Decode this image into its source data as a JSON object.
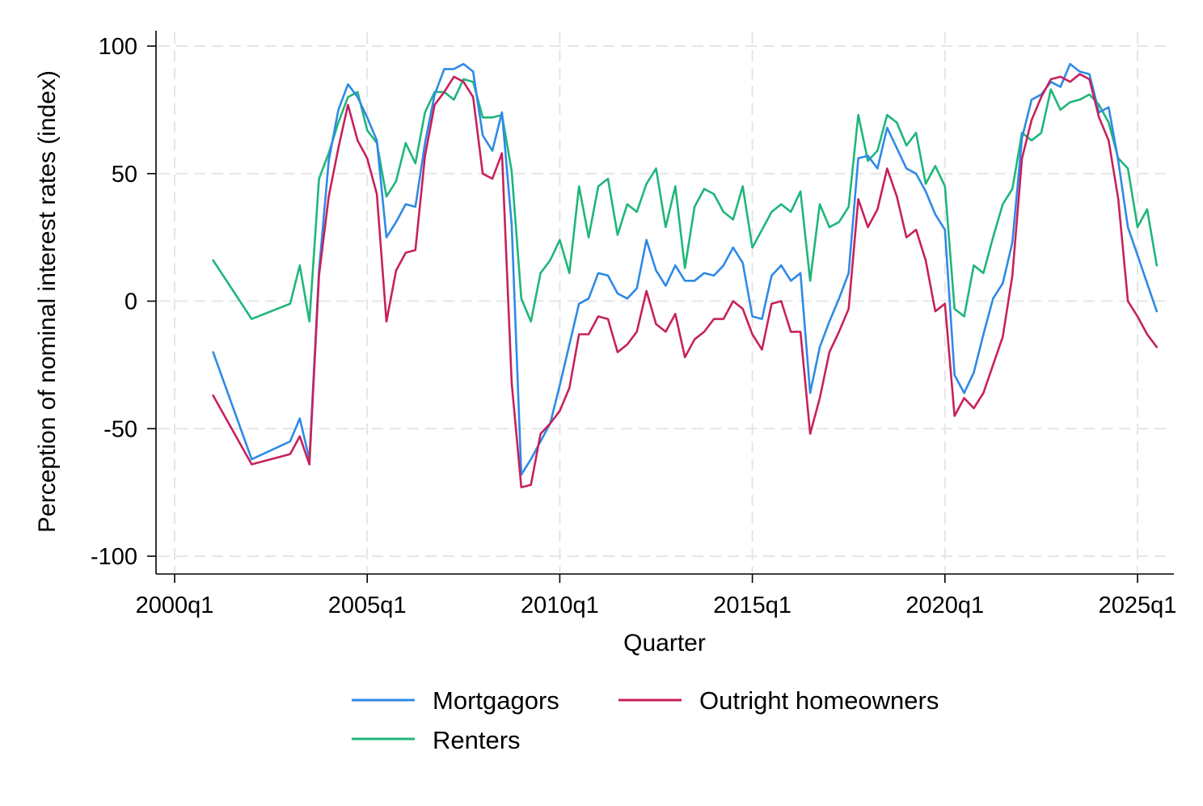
{
  "chart_data": {
    "type": "line",
    "title": "",
    "xlabel": "Quarter",
    "ylabel": "Perception of nominal interest rates (index)",
    "xlim": [
      "2000q1",
      "2025q3"
    ],
    "ylim": [
      -100,
      100
    ],
    "x_ticks": [
      "2000q1",
      "2005q1",
      "2010q1",
      "2015q1",
      "2020q1",
      "2025q1"
    ],
    "y_ticks": [
      100,
      50,
      0,
      -50,
      -100
    ],
    "y_tick_labels": [
      "100",
      "50",
      "0",
      "-50",
      "-100"
    ],
    "grid": true,
    "legend": {
      "position": "bottom",
      "columns": 2
    },
    "x": [
      "2001q1",
      "2002q1",
      "2003q1",
      "2003q2",
      "2003q3",
      "2003q4",
      "2004q1",
      "2004q2",
      "2004q3",
      "2004q4",
      "2005q1",
      "2005q2",
      "2005q3",
      "2005q4",
      "2006q1",
      "2006q2",
      "2006q3",
      "2006q4",
      "2007q1",
      "2007q2",
      "2007q3",
      "2007q4",
      "2008q1",
      "2008q2",
      "2008q3",
      "2008q4",
      "2009q1",
      "2009q2",
      "2009q3",
      "2009q4",
      "2010q1",
      "2010q2",
      "2010q3",
      "2010q4",
      "2011q1",
      "2011q2",
      "2011q3",
      "2011q4",
      "2012q1",
      "2012q2",
      "2012q3",
      "2012q4",
      "2013q1",
      "2013q2",
      "2013q3",
      "2013q4",
      "2014q1",
      "2014q2",
      "2014q3",
      "2014q4",
      "2015q1",
      "2015q2",
      "2015q3",
      "2015q4",
      "2016q1",
      "2016q2",
      "2016q3",
      "2016q4",
      "2017q1",
      "2017q2",
      "2017q3",
      "2017q4",
      "2018q1",
      "2018q2",
      "2018q3",
      "2018q4",
      "2019q1",
      "2019q2",
      "2019q3",
      "2019q4",
      "2020q1",
      "2020q2",
      "2020q3",
      "2020q4",
      "2021q1",
      "2021q2",
      "2021q3",
      "2021q4",
      "2022q1",
      "2022q2",
      "2022q3",
      "2022q4",
      "2023q1",
      "2023q2",
      "2023q3",
      "2023q4",
      "2024q1",
      "2024q2",
      "2024q3",
      "2024q4",
      "2025q1",
      "2025q2",
      "2025q3"
    ],
    "series": [
      {
        "name": "Mortgagors",
        "color": "#2e8ae6",
        "values": [
          -20,
          -62,
          -55,
          -46,
          -62,
          12,
          55,
          75,
          85,
          80,
          72,
          63,
          25,
          31,
          38,
          37,
          62,
          81,
          91,
          91,
          93,
          90,
          65,
          59,
          74,
          30,
          -68,
          -62,
          -55,
          -48,
          -33,
          -17,
          -1,
          1,
          11,
          10,
          3,
          1,
          5,
          24,
          12,
          6,
          14,
          8,
          8,
          11,
          10,
          14,
          21,
          15,
          -6,
          -7,
          10,
          14,
          8,
          11,
          -36,
          -18,
          -8,
          1,
          11,
          56,
          57,
          52,
          68,
          60,
          52,
          50,
          43,
          34,
          28,
          -29,
          -36,
          -28,
          -13,
          1,
          7,
          23,
          64,
          79,
          81,
          86,
          84,
          93,
          90,
          89,
          74,
          76,
          55,
          29,
          18,
          7,
          -4
        ]
      },
      {
        "name": "Renters",
        "color": "#1fb67a",
        "values": [
          16,
          -7,
          -1,
          14,
          -8,
          48,
          58,
          70,
          80,
          82,
          67,
          62,
          41,
          47,
          62,
          54,
          74,
          82,
          82,
          79,
          87,
          86,
          72,
          72,
          73,
          51,
          1,
          -8,
          11,
          16,
          24,
          11,
          45,
          25,
          45,
          48,
          26,
          38,
          35,
          46,
          52,
          29,
          45,
          13,
          37,
          44,
          42,
          35,
          32,
          45,
          21,
          28,
          35,
          38,
          35,
          43,
          8,
          38,
          29,
          31,
          37,
          73,
          55,
          59,
          73,
          70,
          61,
          66,
          46,
          53,
          45,
          -3,
          -6,
          14,
          11,
          25,
          38,
          44,
          66,
          63,
          66,
          83,
          75,
          78,
          79,
          81,
          77,
          70,
          56,
          52,
          29,
          36,
          14
        ]
      },
      {
        "name": "Outright homeowners",
        "color": "#c7215d",
        "values": [
          -37,
          -64,
          -60,
          -53,
          -64,
          10,
          41,
          60,
          77,
          63,
          56,
          42,
          -8,
          12,
          19,
          20,
          57,
          77,
          82,
          88,
          86,
          80,
          50,
          48,
          58,
          -32,
          -73,
          -72,
          -52,
          -48,
          -43,
          -34,
          -13,
          -13,
          -6,
          -7,
          -20,
          -17,
          -12,
          4,
          -9,
          -12,
          -5,
          -22,
          -15,
          -12,
          -7,
          -7,
          0,
          -3,
          -13,
          -19,
          -1,
          0,
          -12,
          -12,
          -52,
          -38,
          -20,
          -12,
          -3,
          40,
          29,
          36,
          52,
          41,
          25,
          28,
          16,
          -4,
          -1,
          -45,
          -38,
          -42,
          -36,
          -25,
          -14,
          10,
          56,
          71,
          80,
          87,
          88,
          86,
          89,
          87,
          72,
          63,
          40,
          0,
          -6,
          -13,
          -18
        ]
      }
    ]
  }
}
